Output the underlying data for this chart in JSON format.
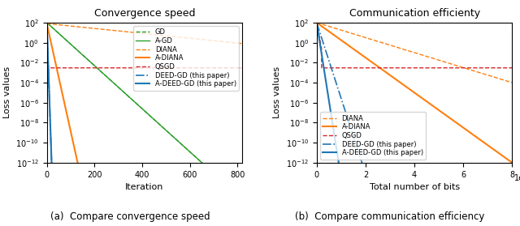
{
  "fig_width": 6.4,
  "fig_height": 2.79,
  "dpi": 100,
  "left_title": "Convergence speed",
  "right_title": "Communication efficienty",
  "ylabel": "Loss values",
  "left_xlabel": "Iteration",
  "right_xlabel": "Total number of bits",
  "left_xlim": [
    0,
    820
  ],
  "right_xlim": [
    0,
    8000000
  ],
  "ylim_log_min": -12,
  "ylim_log_max": 2,
  "caption_left": "(a)  Compare convergence speed",
  "caption_right": "(b)  Compare communication efficiency",
  "colors": {
    "GD": "#2ca02c",
    "A-GD": "#2ca02c",
    "DIANA": "#ff7f0e",
    "A-DIANA": "#ff7f0e",
    "QSGD": "#d62728",
    "DEED-GD": "#1f77b4",
    "A-DEED-GD": "#1f77b4"
  }
}
